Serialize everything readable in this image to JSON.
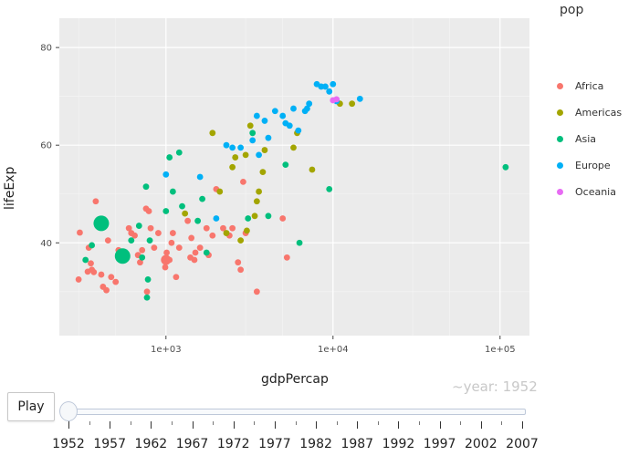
{
  "legend": {
    "title": "pop",
    "items": [
      {
        "label": "Africa",
        "color": "#F8766D"
      },
      {
        "label": "Americas",
        "color": "#A3A500"
      },
      {
        "label": "Asia",
        "color": "#00BF7D"
      },
      {
        "label": "Europe",
        "color": "#00B0F6"
      },
      {
        "label": "Oceania",
        "color": "#E76BF3"
      }
    ]
  },
  "controls": {
    "play_label": "Play",
    "current_frame": "~year: 1952",
    "slider_steps": [
      "1952",
      "1957",
      "1962",
      "1967",
      "1972",
      "1977",
      "1982",
      "1987",
      "1992",
      "1997",
      "2002",
      "2007"
    ],
    "slider_value": "1952"
  },
  "chart_data": {
    "type": "scatter",
    "xlabel": "gdpPercap",
    "ylabel": "lifeExp",
    "x_scale": "log10",
    "x_ticks": [
      "1e+03",
      "1e+04",
      "1e+05"
    ],
    "y_ticks": [
      "40",
      "60",
      "80"
    ],
    "xlim": [
      230,
      150000
    ],
    "ylim": [
      21,
      86
    ],
    "grid": true,
    "legend_position": "right",
    "series": [
      {
        "name": "Africa",
        "color": "#F8766D",
        "points": [
          [
            300,
            32.5
          ],
          [
            305,
            42.1
          ],
          [
            340,
            34.1
          ],
          [
            345,
            39
          ],
          [
            355,
            35.8
          ],
          [
            360,
            34.5
          ],
          [
            370,
            34.0
          ],
          [
            380,
            48.5
          ],
          [
            410,
            33.5
          ],
          [
            420,
            31.0
          ],
          [
            440,
            30.3
          ],
          [
            450,
            40.5
          ],
          [
            470,
            33.0
          ],
          [
            500,
            32.0
          ],
          [
            520,
            38.5
          ],
          [
            540,
            36.5
          ],
          [
            600,
            43.0
          ],
          [
            620,
            42.0
          ],
          [
            650,
            41.5
          ],
          [
            680,
            37.5
          ],
          [
            700,
            36.0
          ],
          [
            720,
            38.5
          ],
          [
            760,
            47.0
          ],
          [
            770,
            30.0
          ],
          [
            790,
            46.5
          ],
          [
            810,
            43.0
          ],
          [
            850,
            39.0
          ],
          [
            900,
            42.0
          ],
          [
            990,
            35.0
          ],
          [
            1010,
            38.0
          ],
          [
            1050,
            36.5
          ],
          [
            1080,
            40.0
          ],
          [
            1100,
            42.0
          ],
          [
            1150,
            33.0
          ],
          [
            1200,
            39.0
          ],
          [
            1350,
            44.5
          ],
          [
            1400,
            37.0
          ],
          [
            1420,
            41.0
          ],
          [
            1480,
            36.5
          ],
          [
            1500,
            38.0
          ],
          [
            1600,
            39.0
          ],
          [
            1750,
            43.0
          ],
          [
            1800,
            37.5
          ],
          [
            1900,
            41.5
          ],
          [
            2000,
            51.0
          ],
          [
            2200,
            43.0
          ],
          [
            2400,
            41.5
          ],
          [
            2500,
            43.0
          ],
          [
            2700,
            36.0
          ],
          [
            2800,
            34.5
          ],
          [
            2900,
            52.5
          ],
          [
            3000,
            42.0
          ],
          [
            3500,
            30.0
          ],
          [
            5000,
            45.0
          ],
          [
            5300,
            37.0
          ]
        ]
      },
      {
        "name": "Americas",
        "color": "#A3A500",
        "points": [
          [
            1300,
            46
          ],
          [
            1900,
            62.5
          ],
          [
            2100,
            50.5
          ],
          [
            2300,
            42.0
          ],
          [
            2500,
            55.5
          ],
          [
            2600,
            57.5
          ],
          [
            2800,
            40.5
          ],
          [
            3000,
            58
          ],
          [
            3050,
            42.5
          ],
          [
            3200,
            64
          ],
          [
            3400,
            45.5
          ],
          [
            3500,
            48.5
          ],
          [
            3600,
            50.5
          ],
          [
            3800,
            54.5
          ],
          [
            3900,
            59
          ],
          [
            5800,
            59.5
          ],
          [
            6100,
            62.5
          ],
          [
            7500,
            55
          ],
          [
            11000,
            68.5
          ],
          [
            13000,
            68.5
          ]
        ]
      },
      {
        "name": "Asia",
        "color": "#00BF7D",
        "points": [
          [
            330,
            36.5
          ],
          [
            360,
            39.5
          ],
          [
            400,
            44
          ],
          [
            560,
            37.5
          ],
          [
            580,
            37.5
          ],
          [
            620,
            40.5
          ],
          [
            690,
            43.5
          ],
          [
            720,
            37.0
          ],
          [
            760,
            51.5
          ],
          [
            770,
            28.8
          ],
          [
            780,
            32.5
          ],
          [
            800,
            40.5
          ],
          [
            1000,
            46.5
          ],
          [
            1050,
            57.5
          ],
          [
            1100,
            50.5
          ],
          [
            1200,
            58.5
          ],
          [
            1250,
            47.5
          ],
          [
            1550,
            44.5
          ],
          [
            1650,
            49.0
          ],
          [
            1750,
            38.0
          ],
          [
            3100,
            45.0
          ],
          [
            3300,
            62.5
          ],
          [
            4100,
            45.5
          ],
          [
            5200,
            56.0
          ],
          [
            6300,
            40.0
          ],
          [
            9500,
            51.0
          ],
          [
            108000,
            55.5
          ]
        ]
      },
      {
        "name": "Europe",
        "color": "#00B0F6",
        "points": [
          [
            1000,
            54.0
          ],
          [
            1600,
            53.5
          ],
          [
            2000,
            45.0
          ],
          [
            2300,
            60.0
          ],
          [
            2500,
            59.5
          ],
          [
            2800,
            59.5
          ],
          [
            3300,
            61.0
          ],
          [
            3500,
            66
          ],
          [
            3600,
            58.0
          ],
          [
            3900,
            65
          ],
          [
            4100,
            61.5
          ],
          [
            4500,
            67.0
          ],
          [
            5000,
            66
          ],
          [
            5200,
            64.5
          ],
          [
            5500,
            64.0
          ],
          [
            5800,
            67.5
          ],
          [
            6200,
            63.0
          ],
          [
            6800,
            67.0
          ],
          [
            7000,
            67.5
          ],
          [
            7200,
            68.5
          ],
          [
            8000,
            72.5
          ],
          [
            8500,
            72.0
          ],
          [
            9000,
            72.0
          ],
          [
            9500,
            71.0
          ],
          [
            10000,
            72.5
          ],
          [
            10500,
            69.0
          ],
          [
            14500,
            69.5
          ]
        ]
      },
      {
        "name": "Oceania",
        "color": "#E76BF3",
        "points": [
          [
            10000,
            69.2
          ],
          [
            10500,
            69.4
          ]
        ]
      }
    ],
    "bubble_emphasis": [
      {
        "series": "Asia",
        "x": 410,
        "y": 44.0,
        "size": "large"
      },
      {
        "series": "Asia",
        "x": 550,
        "y": 37.3,
        "size": "large"
      },
      {
        "series": "Africa",
        "x": 1000,
        "y": 36.5,
        "size": "medium"
      }
    ]
  }
}
